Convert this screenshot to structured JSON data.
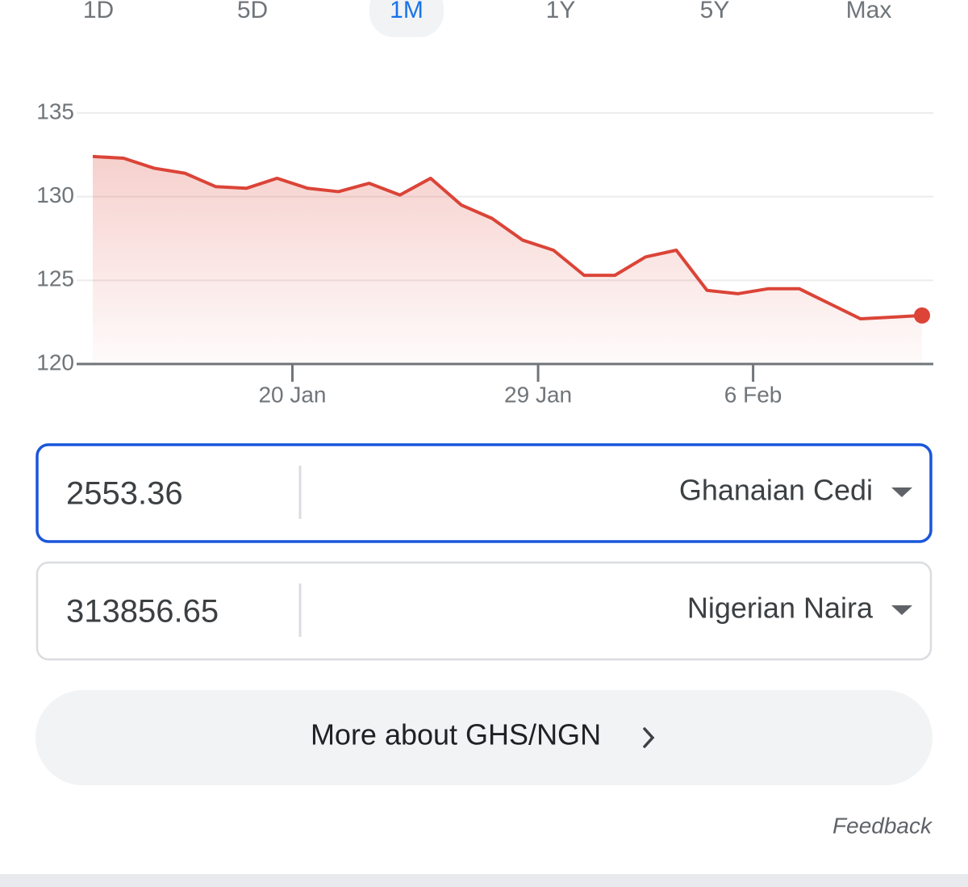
{
  "tabs": [
    "1D",
    "5D",
    "1M",
    "1Y",
    "5Y",
    "Max"
  ],
  "selected_tab": "1M",
  "chart_data": {
    "type": "line",
    "x": [
      0,
      1,
      2,
      3,
      4,
      5,
      6,
      7,
      8,
      9,
      10,
      11,
      12,
      13,
      14,
      15,
      16,
      17,
      18,
      19,
      20,
      21,
      22,
      23,
      24,
      25,
      26,
      27
    ],
    "series": [
      {
        "name": "GHS/NGN",
        "color": "#db4437",
        "values": [
          132.4,
          132.3,
          131.7,
          131.4,
          130.6,
          130.5,
          131.1,
          130.5,
          130.3,
          130.8,
          130.1,
          131.1,
          129.5,
          128.7,
          127.4,
          126.8,
          125.3,
          125.3,
          126.4,
          126.8,
          124.4,
          124.2,
          124.5,
          124.5,
          123.6,
          122.7,
          122.8,
          122.9
        ]
      }
    ],
    "xlim": [
      0,
      27
    ],
    "xticks": [
      {
        "value": 6.5,
        "label": "20 Jan"
      },
      {
        "value": 14.5,
        "label": "29 Jan"
      },
      {
        "value": 21.5,
        "label": "6 Feb"
      }
    ],
    "ylim": [
      120,
      135
    ],
    "yticks": [
      120,
      125,
      130,
      135
    ],
    "grid": true
  },
  "converter": [
    {
      "amount": "2553.36",
      "currency": "Ghanaian Cedi",
      "focused": true
    },
    {
      "amount": "313856.65",
      "currency": "Nigerian Naira",
      "focused": false
    }
  ],
  "button": "More about GHS/NGN",
  "feedback": "Feedback"
}
